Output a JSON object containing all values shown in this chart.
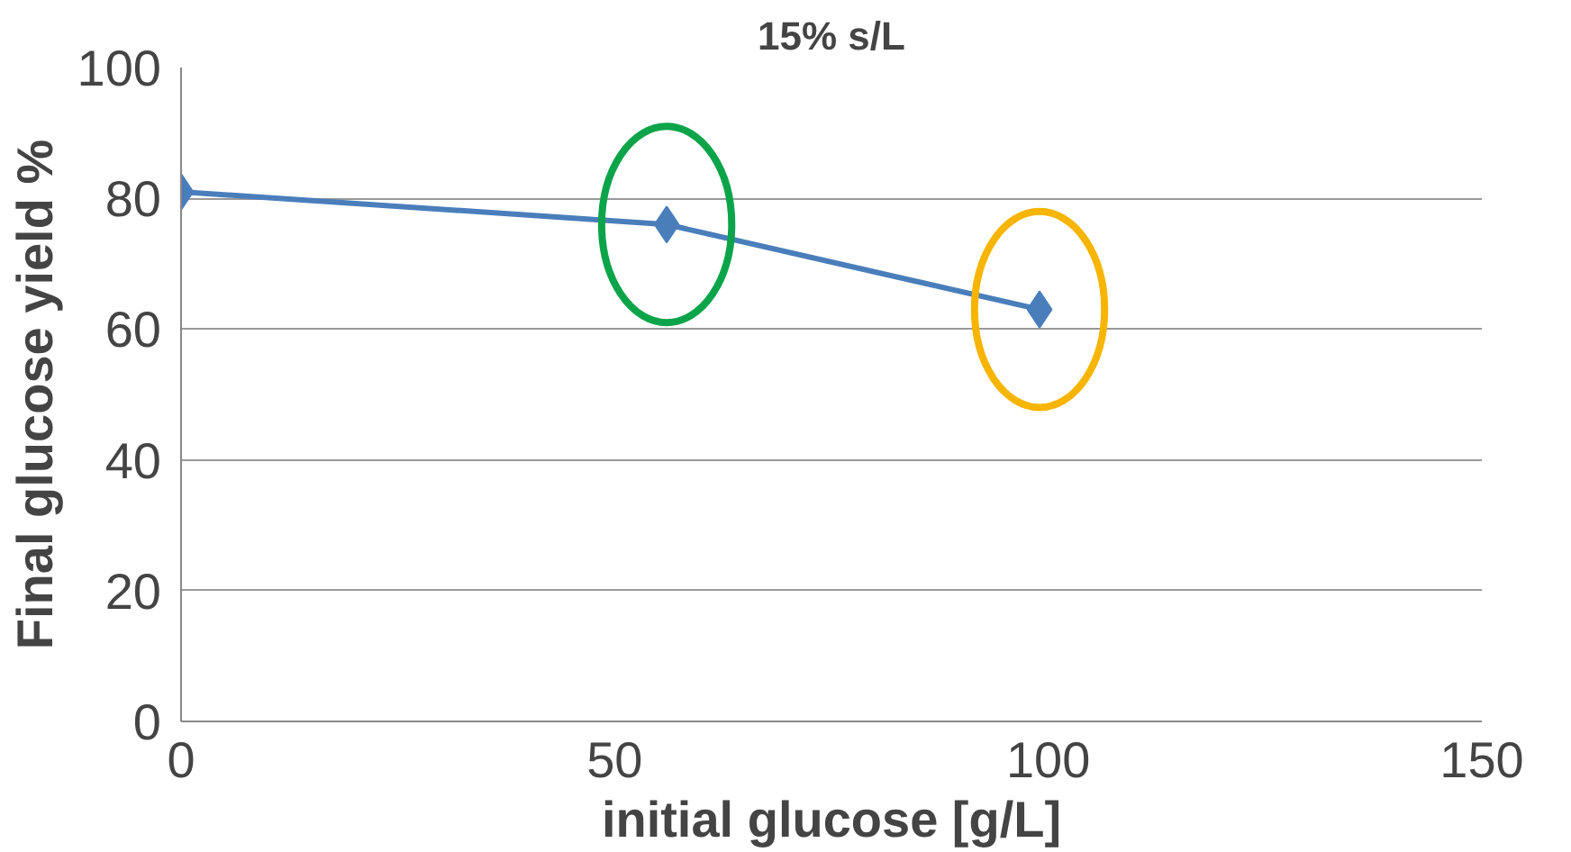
{
  "chart_data": {
    "type": "line",
    "title": "15% s/L",
    "xlabel": "initial glucose [g/L]",
    "ylabel": "Final glucose yield %",
    "x": [
      0,
      56,
      99
    ],
    "series": [
      {
        "color": "#4a7ebb",
        "values": [
          81,
          76,
          63
        ]
      }
    ],
    "xlim": [
      0,
      150
    ],
    "xticks": [
      0,
      50,
      100,
      150
    ],
    "ylim": [
      0,
      100
    ],
    "yticks": [
      0,
      20,
      40,
      60,
      80,
      100
    ],
    "grid": "y",
    "marker": "diamond",
    "line_style": "solid"
  }
}
